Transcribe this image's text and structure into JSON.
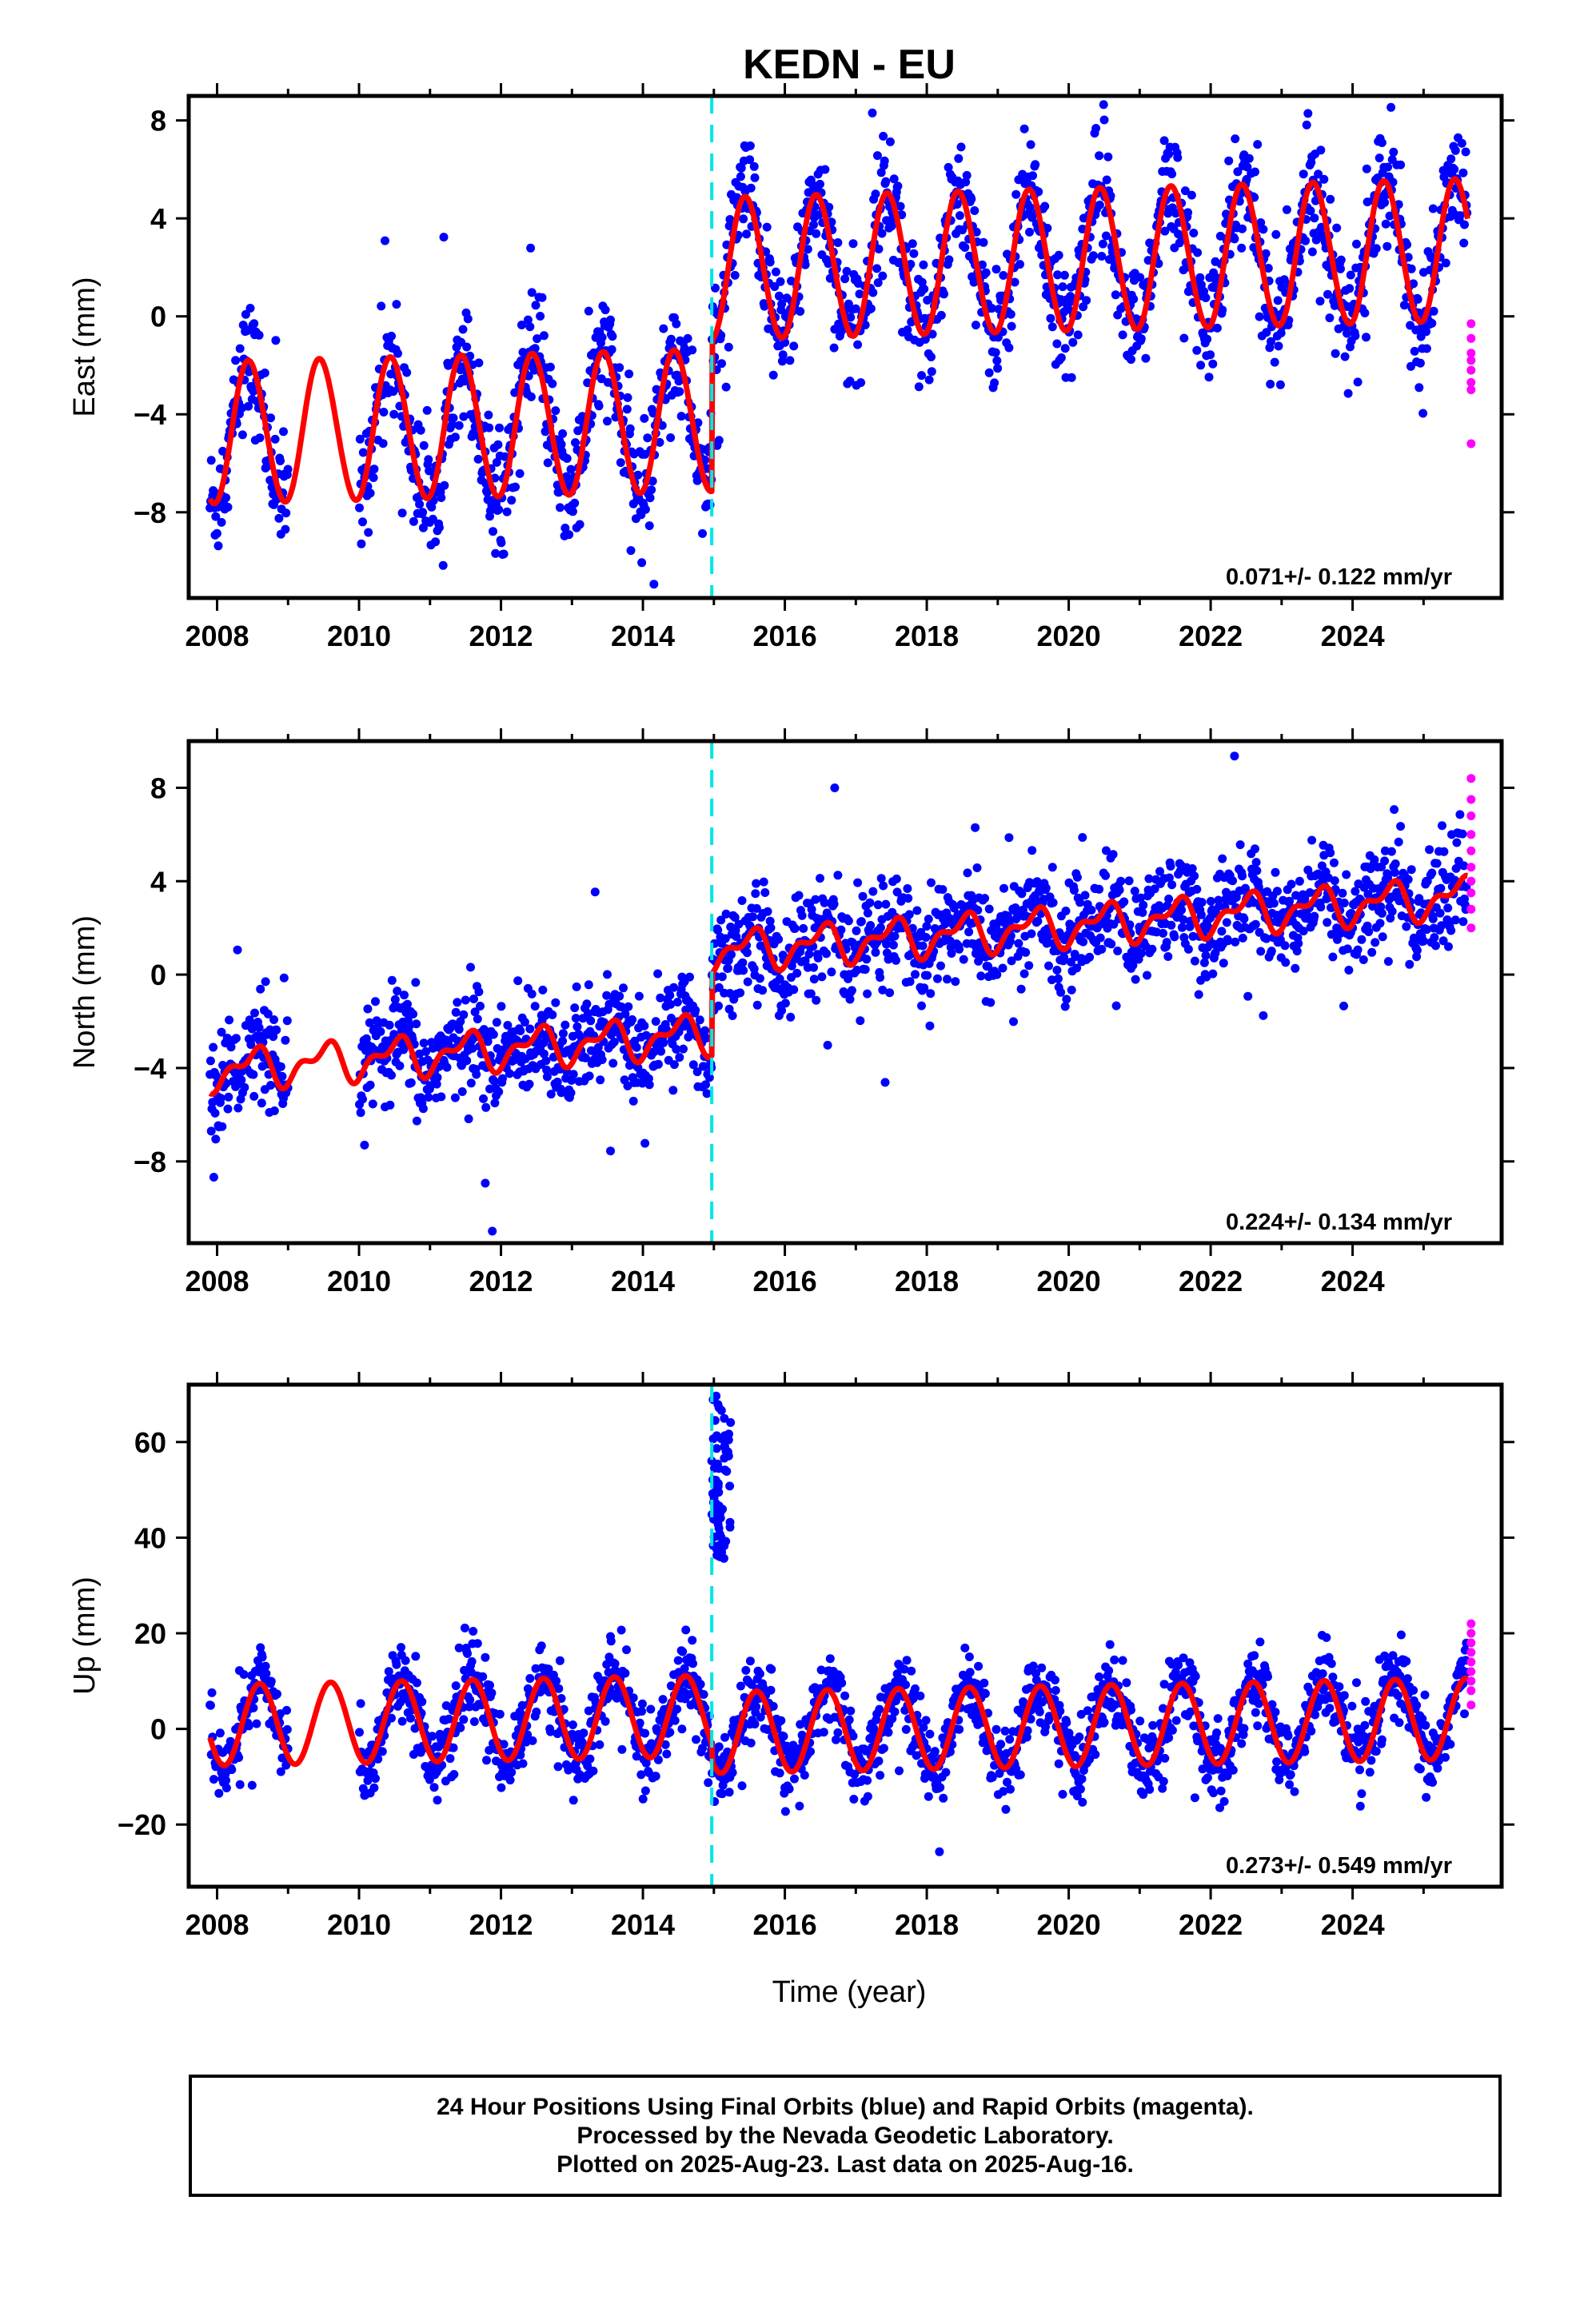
{
  "chart_data": {
    "type": "scatter",
    "title": "KEDN - EU",
    "x_ticks": [
      "2008",
      "2010",
      "2012",
      "2014",
      "2016",
      "2018",
      "2020",
      "2022",
      "2024"
    ],
    "xlim": [
      2007.6,
      2026.1
    ],
    "xlabel": "Time (year)",
    "colors": {
      "final": "#0000ff",
      "rapid": "#ff00ff",
      "model": "#ff0000",
      "offset": "#00e5e5",
      "frame": "#000000"
    },
    "offset_epoch": 2014.97,
    "last_data": 2025.62,
    "gaps": [
      [
        2009.0,
        2010.0
      ]
    ],
    "panels": [
      {
        "id": "east",
        "ylabel": "East (mm)",
        "ylim": [
          -11.5,
          9.0
        ],
        "y_ticks": [
          8,
          4,
          0,
          -4,
          -8
        ],
        "y_tick_labels": [
          "8",
          "4",
          "0",
          "−4",
          "−8"
        ],
        "rate": "0.071+/- 0.122 mm/yr",
        "model": {
          "pre_offset": -4.2,
          "post_offset": 2.0,
          "trend": 0.071,
          "annual_amplitude": 2.9,
          "annual_peak": 0.45,
          "semiannual_amplitude": 0.1,
          "semiannual_peak": 0.35
        },
        "scatter_sigma": 1.2,
        "outlier_sigma": 3.0,
        "offset_spike": null,
        "rapid_points": [
          -0.3,
          -1.5,
          -1.8,
          -2.2,
          -2.7,
          -3.0,
          -5.2,
          -0.9
        ]
      },
      {
        "id": "north",
        "ylabel": "North (mm)",
        "ylim": [
          -11.5,
          10.0
        ],
        "y_ticks": [
          8,
          4,
          0,
          -4,
          -8
        ],
        "y_tick_labels": [
          "8",
          "4",
          "0",
          "−4",
          "−8"
        ],
        "rate": "0.224+/- 0.134 mm/yr",
        "model": {
          "pre_offset": -2.3,
          "post_offset": 1.2,
          "trend": 0.224,
          "annual_amplitude": 0.7,
          "annual_peak": 0.5,
          "semiannual_amplitude": 0.4,
          "semiannual_peak": 0.15
        },
        "scatter_sigma": 1.1,
        "outlier_sigma": 3.2,
        "offset_spike": null,
        "rapid_points": [
          2.0,
          2.8,
          3.5,
          4.0,
          4.6,
          5.3,
          6.0,
          6.8,
          7.5,
          8.4
        ]
      },
      {
        "id": "up",
        "ylabel": "Up (mm)",
        "ylim": [
          -33,
          72
        ],
        "y_ticks": [
          60,
          40,
          20,
          0,
          -20
        ],
        "y_tick_labels": [
          "60",
          "40",
          "20",
          "0",
          "−20"
        ],
        "rate": "0.273+/- 0.549 mm/yr",
        "model": {
          "pre_offset": 3.0,
          "post_offset": -0.5,
          "trend": 0.273,
          "annual_amplitude": 8.5,
          "annual_peak": 0.6,
          "semiannual_amplitude": 0.0,
          "semiannual_peak": 0.0
        },
        "scatter_sigma": 4.0,
        "outlier_sigma": 10.0,
        "offset_spike": {
          "x_start": 2014.97,
          "x_end": 2015.25,
          "y_min": 35,
          "y_max": 70
        },
        "rapid_points": [
          5,
          8,
          10,
          12,
          14,
          16,
          18,
          20,
          22
        ]
      }
    ]
  },
  "footer": {
    "line1": "24 Hour Positions Using Final Orbits (blue) and Rapid Orbits (magenta).",
    "line2": "Processed by the Nevada Geodetic Laboratory.",
    "line3": "Plotted on 2025-Aug-23. Last data on 2025-Aug-16."
  }
}
